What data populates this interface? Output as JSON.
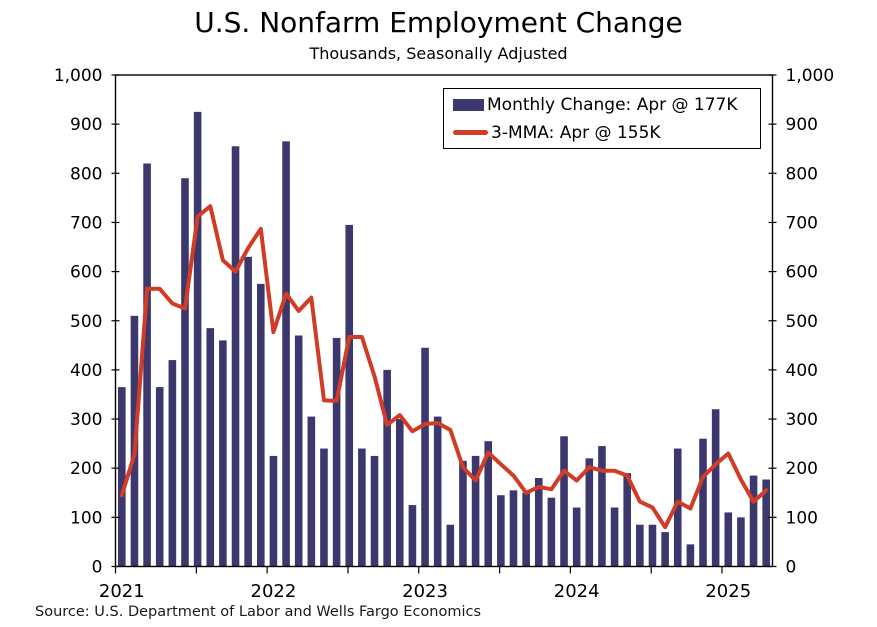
{
  "title": "U.S. Nonfarm Employment Change",
  "subtitle": "Thousands, Seasonally Adjusted",
  "source": "Source: U.S. Department of Labor and Wells Fargo Economics",
  "legend": [
    {
      "label": "Monthly Change: Apr @ 177K",
      "marker": "bar-swatch"
    },
    {
      "label": "3-MMA: Apr @ 155K",
      "marker": "line-swatch"
    }
  ],
  "colors": {
    "bar": "#3c386e",
    "line": "#d13c26",
    "axis": "#000000",
    "text": "#000000"
  },
  "chart_data": {
    "type": "bar",
    "title": "U.S. Nonfarm Employment Change",
    "subtitle": "Thousands, Seasonally Adjusted",
    "ylim": [
      0,
      1000
    ],
    "grid": false,
    "legend_position": "top-right",
    "y_ticks": [
      0,
      100,
      200,
      300,
      400,
      500,
      600,
      700,
      800,
      900,
      1000
    ],
    "y_tick_labels": [
      "0",
      "100",
      "200",
      "300",
      "400",
      "500",
      "600",
      "700",
      "800",
      "900",
      "1,000"
    ],
    "x_year_labels": [
      "2021",
      "2022",
      "2023",
      "2024",
      "2025"
    ],
    "x": [
      "2021-01",
      "2021-02",
      "2021-03",
      "2021-04",
      "2021-05",
      "2021-06",
      "2021-07",
      "2021-08",
      "2021-09",
      "2021-10",
      "2021-11",
      "2021-12",
      "2022-01",
      "2022-02",
      "2022-03",
      "2022-04",
      "2022-05",
      "2022-06",
      "2022-07",
      "2022-08",
      "2022-09",
      "2022-10",
      "2022-11",
      "2022-12",
      "2023-01",
      "2023-02",
      "2023-03",
      "2023-04",
      "2023-05",
      "2023-06",
      "2023-07",
      "2023-08",
      "2023-09",
      "2023-10",
      "2023-11",
      "2023-12",
      "2024-01",
      "2024-02",
      "2024-03",
      "2024-04",
      "2024-05",
      "2024-06",
      "2024-07",
      "2024-08",
      "2024-09",
      "2024-10",
      "2024-11",
      "2024-12",
      "2025-01",
      "2025-02",
      "2025-03",
      "2025-04"
    ],
    "series": [
      {
        "name": "Monthly Change: Apr @ 177K",
        "type": "bar",
        "values": [
          365,
          510,
          820,
          365,
          420,
          790,
          925,
          485,
          460,
          855,
          630,
          575,
          225,
          865,
          470,
          305,
          240,
          465,
          695,
          240,
          225,
          400,
          300,
          125,
          445,
          305,
          85,
          215,
          225,
          255,
          145,
          155,
          150,
          180,
          140,
          265,
          120,
          220,
          245,
          120,
          190,
          85,
          85,
          70,
          240,
          45,
          260,
          320,
          110,
          100,
          185,
          177
        ]
      },
      {
        "name": "3-MMA: Apr @ 155K",
        "type": "line",
        "values": [
          145,
          228,
          565,
          565,
          535,
          525,
          712,
          733,
          623,
          600,
          648,
          687,
          477,
          555,
          520,
          547,
          338,
          337,
          467,
          467,
          387,
          288,
          308,
          275,
          290,
          292,
          278,
          202,
          175,
          232,
          208,
          185,
          150,
          162,
          157,
          195,
          175,
          202,
          195,
          195,
          185,
          132,
          120,
          80,
          132,
          118,
          182,
          208,
          230,
          177,
          132,
          155
        ]
      }
    ]
  }
}
